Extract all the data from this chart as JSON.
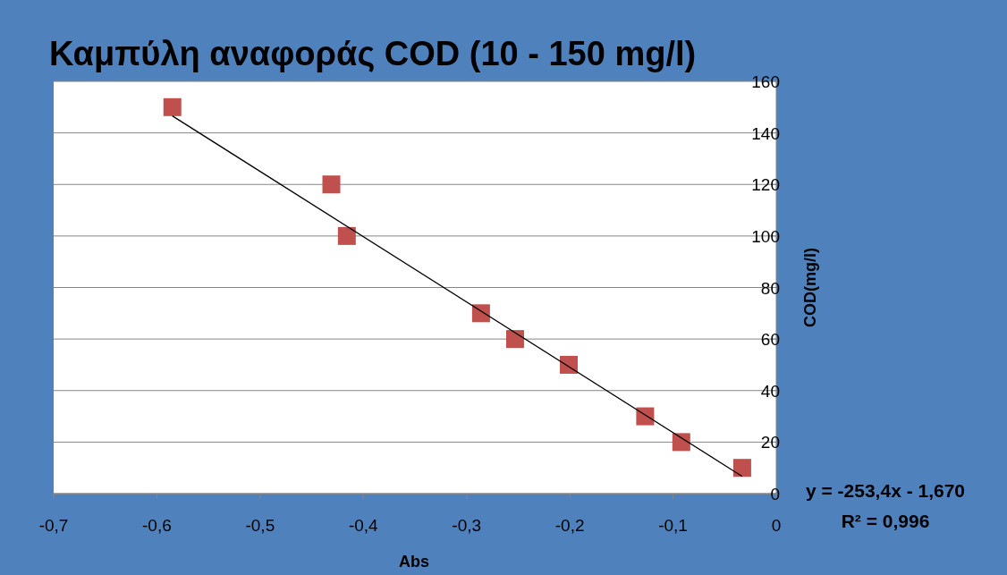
{
  "chart_data": {
    "type": "scatter",
    "title": "Καμπύλη αναφοράς COD (10 - 150 mg/l)",
    "xlabel": "Abs",
    "ylabel": "COD(mg/l)",
    "xlim": [
      -0.7,
      0
    ],
    "xticks": [
      {
        "value": -0.7,
        "label": "-0,7"
      },
      {
        "value": -0.6,
        "label": "-0,6"
      },
      {
        "value": -0.5,
        "label": "-0,5"
      },
      {
        "value": -0.4,
        "label": "-0,4"
      },
      {
        "value": -0.3,
        "label": "-0,3"
      },
      {
        "value": -0.2,
        "label": "-0,2"
      },
      {
        "value": -0.1,
        "label": "-0,1"
      },
      0
    ],
    "ylim": [
      0,
      160
    ],
    "yticks": [
      0,
      20,
      40,
      60,
      80,
      100,
      120,
      140,
      160
    ],
    "grid": "y",
    "series": [
      {
        "color": "#c0504d",
        "marker": "square",
        "x": [
          -0.585,
          -0.431,
          -0.416,
          -0.286,
          -0.253,
          -0.201,
          -0.127,
          -0.092,
          -0.033
        ],
        "values": [
          150,
          120,
          100,
          70,
          60,
          50,
          30,
          20,
          10
        ]
      },
      {
        "type": "line",
        "color": "#000000",
        "marker": "none",
        "line_style": "solid",
        "x": [
          -0.585,
          -0.033
        ],
        "values": [
          146.6,
          6.7
        ]
      }
    ],
    "annotations": [
      "y = -253,4x - 1,670",
      "R² = 0,996"
    ]
  }
}
